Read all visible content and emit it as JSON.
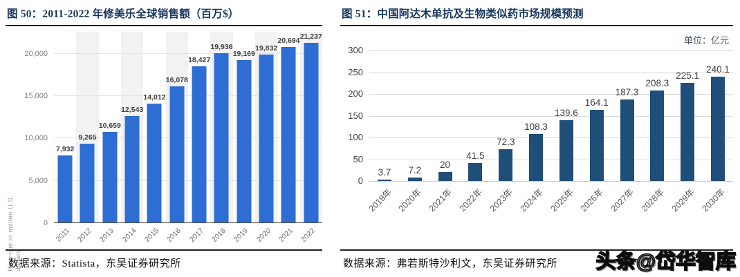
{
  "left_panel": {
    "title": "图 50：2011-2022 年修美乐全球销售额（百万$）",
    "source": "数据来源：Statista，东吴证券研究所"
  },
  "right_panel": {
    "title": "图 51：中国阿达木单抗及生物类似药市场规模预测",
    "unit_label": "单位：亿元",
    "source": "数据来源：弗若斯特沙利文，东吴证券研究所"
  },
  "watermark": "头条@岱华智库",
  "chart_data": [
    {
      "id": "humira-global-sales",
      "type": "bar",
      "title": "2011-2022 年修美乐全球销售额（百万$）",
      "ylabel": "Revenue in million U.S. dollars",
      "categories": [
        "2011",
        "2012",
        "2013",
        "2014",
        "2015",
        "2016",
        "2017",
        "2018",
        "2019",
        "2020",
        "2021",
        "2022"
      ],
      "values": [
        7932,
        9265,
        10659,
        12543,
        14012,
        16078,
        18427,
        19936,
        19169,
        19832,
        20694,
        21237
      ],
      "labels": [
        "7,932",
        "9,265",
        "10,659",
        "12,543",
        "14,012",
        "16,078",
        "18,427",
        "19,936",
        "19,169",
        "19,832",
        "20,694",
        "21,237"
      ],
      "yticks": [
        0,
        5000,
        10000,
        15000,
        20000
      ],
      "ytick_labels": [
        "0",
        "5,000",
        "10,000",
        "15,000",
        "20,000"
      ],
      "ylim": [
        0,
        22500
      ],
      "grid": true,
      "legend": "none",
      "bar_color": "#2e6dd3",
      "stripe_color": "#f2f2f2"
    },
    {
      "id": "china-adalimumab-market-forecast",
      "type": "bar",
      "title": "中国阿达木单抗及生物类似药市场规模预测",
      "unit": "单位：亿元",
      "categories": [
        "2019年",
        "2020年",
        "2021年",
        "2022年",
        "2023年",
        "2024年",
        "2025年",
        "2026年",
        "2027年",
        "2028年",
        "2029年",
        "2030年"
      ],
      "values": [
        3.7,
        7.2,
        20,
        41.5,
        72.3,
        108.3,
        139.6,
        164.1,
        187.3,
        208.3,
        225.1,
        240.1
      ],
      "labels": [
        "3.7",
        "7.2",
        "20",
        "41.5",
        "72.3",
        "108.3",
        "139.6",
        "164.1",
        "187.3",
        "208.3",
        "225.1",
        "240.1"
      ],
      "yticks": [
        0,
        50,
        100,
        150,
        200,
        250,
        300
      ],
      "ytick_labels": [
        "0",
        "50",
        "100",
        "150",
        "200",
        "250",
        "300"
      ],
      "ylim": [
        0,
        300
      ],
      "grid": true,
      "legend": "none",
      "bar_color": "#1f4e79",
      "stripe_color": null
    }
  ]
}
